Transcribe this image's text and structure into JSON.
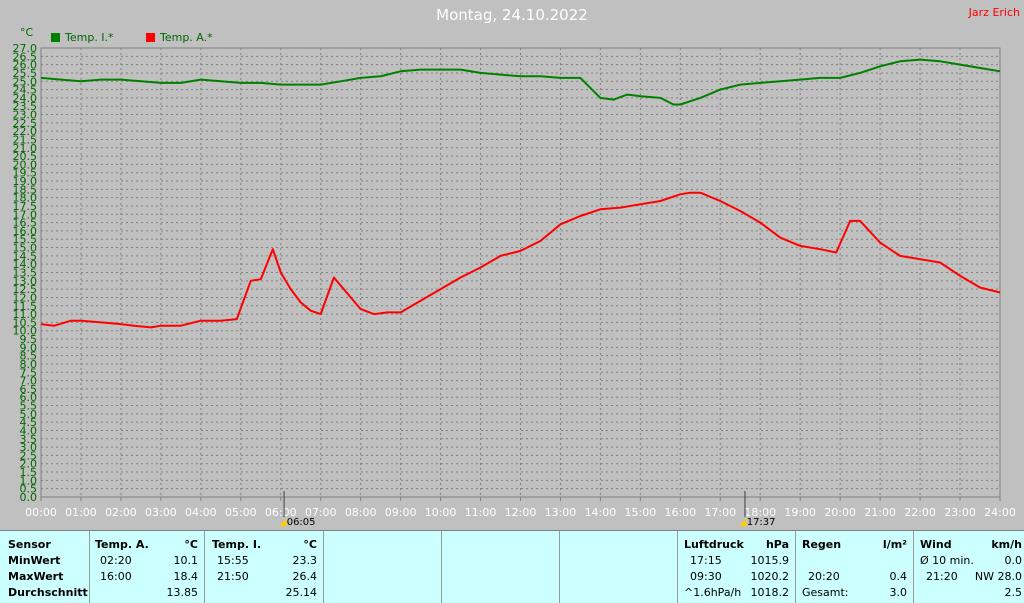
{
  "header": {
    "title": "Montag, 24.10.2022",
    "author": "Jarz Erich",
    "unit": "°C"
  },
  "chart_data": {
    "type": "line",
    "xlabel": "",
    "ylabel": "°C",
    "xlim": [
      0,
      24
    ],
    "ylim": [
      0,
      27
    ],
    "grid": true,
    "legend": "top-left",
    "x_ticks": [
      "00:00",
      "01:00",
      "02:00",
      "03:00",
      "04:00",
      "05:00",
      "06:00",
      "07:00",
      "08:00",
      "09:00",
      "10:00",
      "11:00",
      "12:00",
      "13:00",
      "14:00",
      "15:00",
      "16:00",
      "17:00",
      "18:00",
      "19:00",
      "20:00",
      "21:00",
      "22:00",
      "23:00",
      "24:00"
    ],
    "y_ticks": [
      "0.0",
      "0.5",
      "1.0",
      "1.5",
      "2.0",
      "2.5",
      "3.0",
      "3.5",
      "4.0",
      "4.5",
      "5.0",
      "5.5",
      "6.0",
      "6.5",
      "7.0",
      "7.5",
      "8.0",
      "8.5",
      "9.0",
      "9.5",
      "10.0",
      "10.5",
      "11.0",
      "11.5",
      "12.0",
      "12.5",
      "13.0",
      "13.5",
      "14.0",
      "14.5",
      "15.0",
      "15.5",
      "16.0",
      "16.5",
      "17.0",
      "17.5",
      "18.0",
      "18.5",
      "19.0",
      "19.5",
      "20.0",
      "20.5",
      "21.0",
      "21.5",
      "22.0",
      "22.5",
      "23.0",
      "23.5",
      "24.0",
      "24.5",
      "25.0",
      "25.5",
      "26.0",
      "26.5",
      "27.0"
    ],
    "markers": [
      {
        "x": 6.083,
        "label": "06:05"
      },
      {
        "x": 17.617,
        "label": "17:37"
      }
    ],
    "series": [
      {
        "name": "Temp. I.*",
        "color": "#008000",
        "x": [
          0,
          0.5,
          1,
          1.5,
          2,
          2.5,
          3,
          3.5,
          4,
          4.5,
          5,
          5.5,
          6,
          6.5,
          7,
          7.5,
          8,
          8.5,
          9,
          9.5,
          10,
          10.5,
          11,
          11.5,
          12,
          12.5,
          13,
          13.5,
          14,
          14.33,
          14.67,
          15,
          15.5,
          15.83,
          16,
          16.5,
          17,
          17.5,
          18,
          18.5,
          19,
          19.5,
          20,
          20.5,
          21,
          21.5,
          22,
          22.5,
          23,
          23.5,
          24
        ],
        "y": [
          25.2,
          25.1,
          25.0,
          25.1,
          25.1,
          25.0,
          24.9,
          24.9,
          25.1,
          25.0,
          24.9,
          24.9,
          24.8,
          24.8,
          24.8,
          25.0,
          25.2,
          25.3,
          25.6,
          25.7,
          25.7,
          25.7,
          25.5,
          25.4,
          25.3,
          25.3,
          25.2,
          25.2,
          24.0,
          23.9,
          24.2,
          24.1,
          24.0,
          23.6,
          23.6,
          24.0,
          24.5,
          24.8,
          24.9,
          25.0,
          25.1,
          25.2,
          25.2,
          25.5,
          25.9,
          26.2,
          26.3,
          26.2,
          26.0,
          25.8,
          25.6
        ]
      },
      {
        "name": "Temp. A.*",
        "color": "#ff0000",
        "x": [
          0,
          0.33,
          0.75,
          1,
          1.5,
          2,
          2.33,
          2.75,
          3,
          3.5,
          4,
          4.5,
          4.9,
          5.25,
          5.5,
          5.8,
          6,
          6.25,
          6.5,
          6.75,
          7,
          7.33,
          7.75,
          8,
          8.33,
          8.67,
          9,
          9.5,
          10,
          10.5,
          11,
          11.5,
          12,
          12.5,
          13,
          13.5,
          14,
          14.5,
          15,
          15.5,
          16,
          16.25,
          16.5,
          17,
          17.5,
          18,
          18.5,
          19,
          19.5,
          19.9,
          20.25,
          20.5,
          21,
          21.5,
          22,
          22.5,
          23,
          23.5,
          24
        ],
        "y": [
          10.4,
          10.3,
          10.6,
          10.6,
          10.5,
          10.4,
          10.3,
          10.2,
          10.3,
          10.3,
          10.6,
          10.6,
          10.7,
          13.0,
          13.1,
          14.9,
          13.5,
          12.5,
          11.7,
          11.2,
          11.0,
          13.2,
          12.0,
          11.3,
          11.0,
          11.1,
          11.1,
          11.8,
          12.5,
          13.2,
          13.8,
          14.5,
          14.8,
          15.4,
          16.4,
          16.9,
          17.3,
          17.4,
          17.6,
          17.8,
          18.2,
          18.3,
          18.3,
          17.8,
          17.2,
          16.5,
          15.6,
          15.1,
          14.9,
          14.7,
          16.6,
          16.6,
          15.3,
          14.5,
          14.3,
          14.1,
          13.3,
          12.6,
          12.3
        ]
      }
    ]
  },
  "stats": {
    "sensor": {
      "title": "Sensor",
      "rows": [
        "MinWert",
        "MaxWert",
        "Durchschnitt"
      ]
    },
    "temp_a": {
      "title": "Temp. A.",
      "unit": "°C",
      "min_time": "02:20",
      "min": "10.1",
      "max_time": "16:00",
      "max": "18.4",
      "avg": "13.85"
    },
    "temp_i": {
      "title": "Temp. I.",
      "unit": "°C",
      "min_time": "15:55",
      "min": "23.3",
      "max_time": "21:50",
      "max": "26.4",
      "avg": "25.14"
    },
    "pressure": {
      "title": "Luftdruck",
      "unit": "hPa",
      "r1_label": "17:15",
      "r1_value": "1015.9",
      "r2_label": "09:30",
      "r2_value": "1020.2",
      "r3_label": "^1.6hPa/h",
      "r3_value": "1018.2"
    },
    "rain": {
      "title": "Regen",
      "unit": "l/m²",
      "r2_label": "20:20",
      "r2_value": "0.4",
      "r3_label": "Gesamt:",
      "r3_value": "3.0"
    },
    "wind": {
      "title": "Wind",
      "unit": "km/h",
      "r1_label": "Ø 10 min.",
      "r1_value": "0.0",
      "r2_label": "21:20",
      "r2_value": "NW 28.0",
      "r3_value": "2.5"
    }
  }
}
